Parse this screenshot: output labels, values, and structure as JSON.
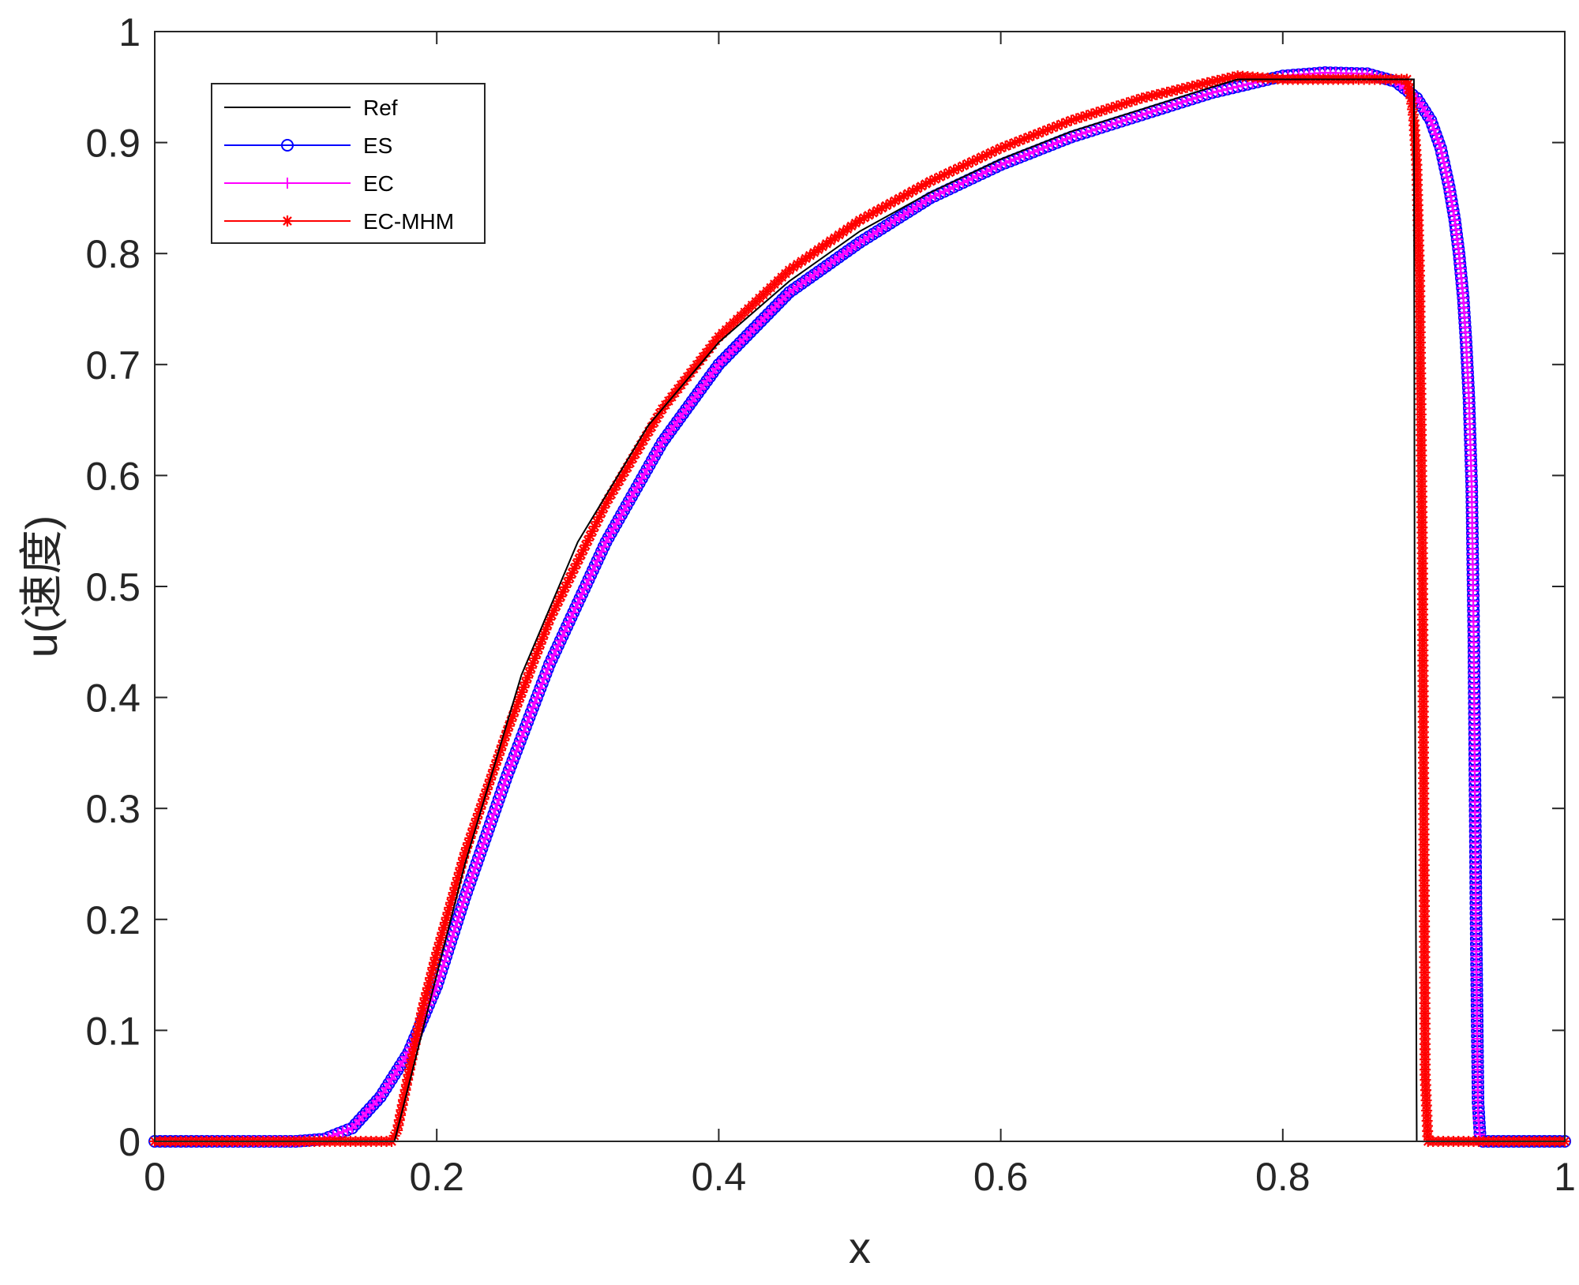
{
  "chart_data": {
    "type": "line",
    "title": "",
    "xlabel": "x",
    "ylabel": "u(速度)",
    "xlim": [
      0,
      1
    ],
    "ylim": [
      0,
      1
    ],
    "xticks": [
      0,
      0.2,
      0.4,
      0.6,
      0.8,
      1
    ],
    "xtick_labels": [
      "0",
      "0.2",
      "0.4",
      "0.6",
      "0.8",
      "1"
    ],
    "yticks": [
      0,
      0.1,
      0.2,
      0.3,
      0.4,
      0.5,
      0.6,
      0.7,
      0.8,
      0.9,
      1
    ],
    "ytick_labels": [
      "0",
      "0.1",
      "0.2",
      "0.3",
      "0.4",
      "0.5",
      "0.6",
      "0.7",
      "0.8",
      "0.9",
      "1"
    ],
    "grid": false,
    "legend_position": "top-left",
    "series": [
      {
        "name": "Ref",
        "color": "#000000",
        "marker": "none",
        "x": [
          0,
          0.17,
          0.19,
          0.22,
          0.26,
          0.3,
          0.35,
          0.4,
          0.45,
          0.5,
          0.55,
          0.6,
          0.65,
          0.7,
          0.75,
          0.768,
          0.8,
          0.85,
          0.893,
          0.8935,
          0.895,
          1.0
        ],
        "y": [
          0,
          0,
          0.1,
          0.25,
          0.42,
          0.54,
          0.645,
          0.72,
          0.775,
          0.82,
          0.855,
          0.885,
          0.91,
          0.93,
          0.95,
          0.957,
          0.957,
          0.957,
          0.957,
          0.5,
          0,
          0
        ]
      },
      {
        "name": "ES",
        "color": "#0000ff",
        "marker": "circle",
        "x": [
          0,
          0.1,
          0.12,
          0.14,
          0.16,
          0.18,
          0.2,
          0.22,
          0.25,
          0.28,
          0.32,
          0.36,
          0.4,
          0.45,
          0.5,
          0.55,
          0.6,
          0.65,
          0.7,
          0.75,
          0.8,
          0.83,
          0.86,
          0.88,
          0.895,
          0.905,
          0.912,
          0.918,
          0.922,
          0.925,
          0.928,
          0.93,
          0.932,
          0.934,
          0.9355,
          0.937,
          0.9385,
          0.94,
          0.942,
          1.0
        ],
        "y": [
          0,
          0,
          0.002,
          0.012,
          0.04,
          0.08,
          0.14,
          0.22,
          0.33,
          0.43,
          0.54,
          0.63,
          0.7,
          0.765,
          0.81,
          0.85,
          0.88,
          0.905,
          0.925,
          0.945,
          0.96,
          0.963,
          0.962,
          0.955,
          0.94,
          0.92,
          0.895,
          0.86,
          0.83,
          0.8,
          0.76,
          0.72,
          0.67,
          0.59,
          0.45,
          0.21,
          0.035,
          0.003,
          0,
          0
        ]
      },
      {
        "name": "EC",
        "color": "#ff00ff",
        "marker": "plus",
        "x": [
          0,
          0.1,
          0.12,
          0.14,
          0.16,
          0.18,
          0.2,
          0.22,
          0.25,
          0.28,
          0.32,
          0.36,
          0.4,
          0.45,
          0.5,
          0.55,
          0.6,
          0.65,
          0.7,
          0.75,
          0.8,
          0.83,
          0.86,
          0.88,
          0.895,
          0.905,
          0.912,
          0.918,
          0.922,
          0.925,
          0.928,
          0.93,
          0.932,
          0.934,
          0.9355,
          0.937,
          0.9385,
          0.94,
          0.942,
          1.0
        ],
        "y": [
          0,
          0,
          0.002,
          0.012,
          0.04,
          0.08,
          0.14,
          0.22,
          0.33,
          0.43,
          0.54,
          0.63,
          0.7,
          0.765,
          0.81,
          0.85,
          0.88,
          0.905,
          0.925,
          0.945,
          0.96,
          0.963,
          0.962,
          0.955,
          0.94,
          0.92,
          0.895,
          0.86,
          0.83,
          0.8,
          0.76,
          0.72,
          0.67,
          0.59,
          0.44,
          0.185,
          0.023,
          0.002,
          0,
          0
        ]
      },
      {
        "name": "EC-MHM",
        "color": "#ff0000",
        "marker": "asterisk",
        "x": [
          0,
          0.168,
          0.172,
          0.18,
          0.19,
          0.2,
          0.22,
          0.25,
          0.28,
          0.32,
          0.36,
          0.4,
          0.45,
          0.5,
          0.55,
          0.6,
          0.65,
          0.7,
          0.75,
          0.768,
          0.8,
          0.85,
          0.888,
          0.891,
          0.893,
          0.895,
          0.897,
          0.899,
          0.901,
          0.903,
          1.0
        ],
        "y": [
          0,
          0,
          0.01,
          0.06,
          0.12,
          0.17,
          0.26,
          0.37,
          0.47,
          0.575,
          0.66,
          0.725,
          0.785,
          0.83,
          0.865,
          0.895,
          0.92,
          0.94,
          0.955,
          0.96,
          0.957,
          0.957,
          0.957,
          0.94,
          0.92,
          0.88,
          0.78,
          0.53,
          0.06,
          0,
          0
        ]
      }
    ]
  }
}
